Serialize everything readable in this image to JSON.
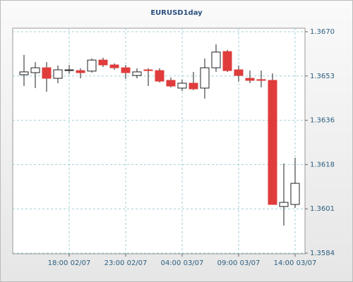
{
  "chart_data": {
    "type": "candlestick",
    "title": "EURUSD1day",
    "categories": [
      null,
      null,
      null,
      null,
      "18:00 02/07",
      null,
      null,
      null,
      null,
      "23:00 02/07",
      null,
      null,
      null,
      null,
      "04:00 03/07",
      null,
      null,
      null,
      null,
      "09:00 03/07",
      null,
      null,
      null,
      null,
      "14:00 03/07"
    ],
    "open": [
      1.36533,
      1.36541,
      1.3656,
      1.36519,
      1.36549,
      1.36549,
      1.36547,
      1.3659,
      1.36571,
      1.3656,
      1.3653,
      1.36552,
      1.36549,
      1.36511,
      1.36481,
      1.365,
      1.36481,
      1.3656,
      1.36623,
      1.36552,
      1.36519,
      1.36514,
      1.36511,
      1.36021,
      1.36029
    ],
    "high": [
      1.3661,
      1.36582,
      1.36582,
      1.36569,
      1.36571,
      1.36558,
      1.36596,
      1.36599,
      1.36577,
      1.36571,
      1.36558,
      1.36558,
      1.36558,
      1.36522,
      1.36514,
      1.36544,
      1.36596,
      1.36651,
      1.36629,
      1.36569,
      1.36549,
      1.36549,
      1.36538,
      1.36188,
      1.3621
    ],
    "low": [
      1.36489,
      1.36481,
      1.36467,
      1.365,
      1.36536,
      1.36519,
      1.36541,
      1.36563,
      1.36552,
      1.36517,
      1.36519,
      1.36489,
      1.36503,
      1.36484,
      1.3647,
      1.36473,
      1.3644,
      1.36544,
      1.36544,
      1.36506,
      1.365,
      1.36484,
      1.36029,
      1.35947,
      1.36015
    ],
    "close": [
      1.36544,
      1.3656,
      1.36519,
      1.36552,
      1.36552,
      1.36541,
      1.3659,
      1.36571,
      1.3656,
      1.36541,
      1.36544,
      1.36549,
      1.36508,
      1.36489,
      1.365,
      1.36478,
      1.3656,
      1.36621,
      1.36549,
      1.3653,
      1.36511,
      1.36511,
      1.36029,
      1.36037,
      1.36111
    ],
    "up_color": "#ffffff",
    "down_color": "#e03c3c",
    "edge_color": "#222222",
    "ylim": [
      1.3584,
      1.367
    ],
    "yticks": [
      {
        "value": 1.3584,
        "label": "1.3584"
      },
      {
        "value": 1.36012,
        "label": "1.3601"
      },
      {
        "value": 1.36184,
        "label": "1.3618"
      },
      {
        "value": 1.36356,
        "label": "1.3636"
      },
      {
        "value": 1.36528,
        "label": "1.3653"
      },
      {
        "value": 1.367,
        "label": "1.3670"
      }
    ],
    "grid": true
  }
}
